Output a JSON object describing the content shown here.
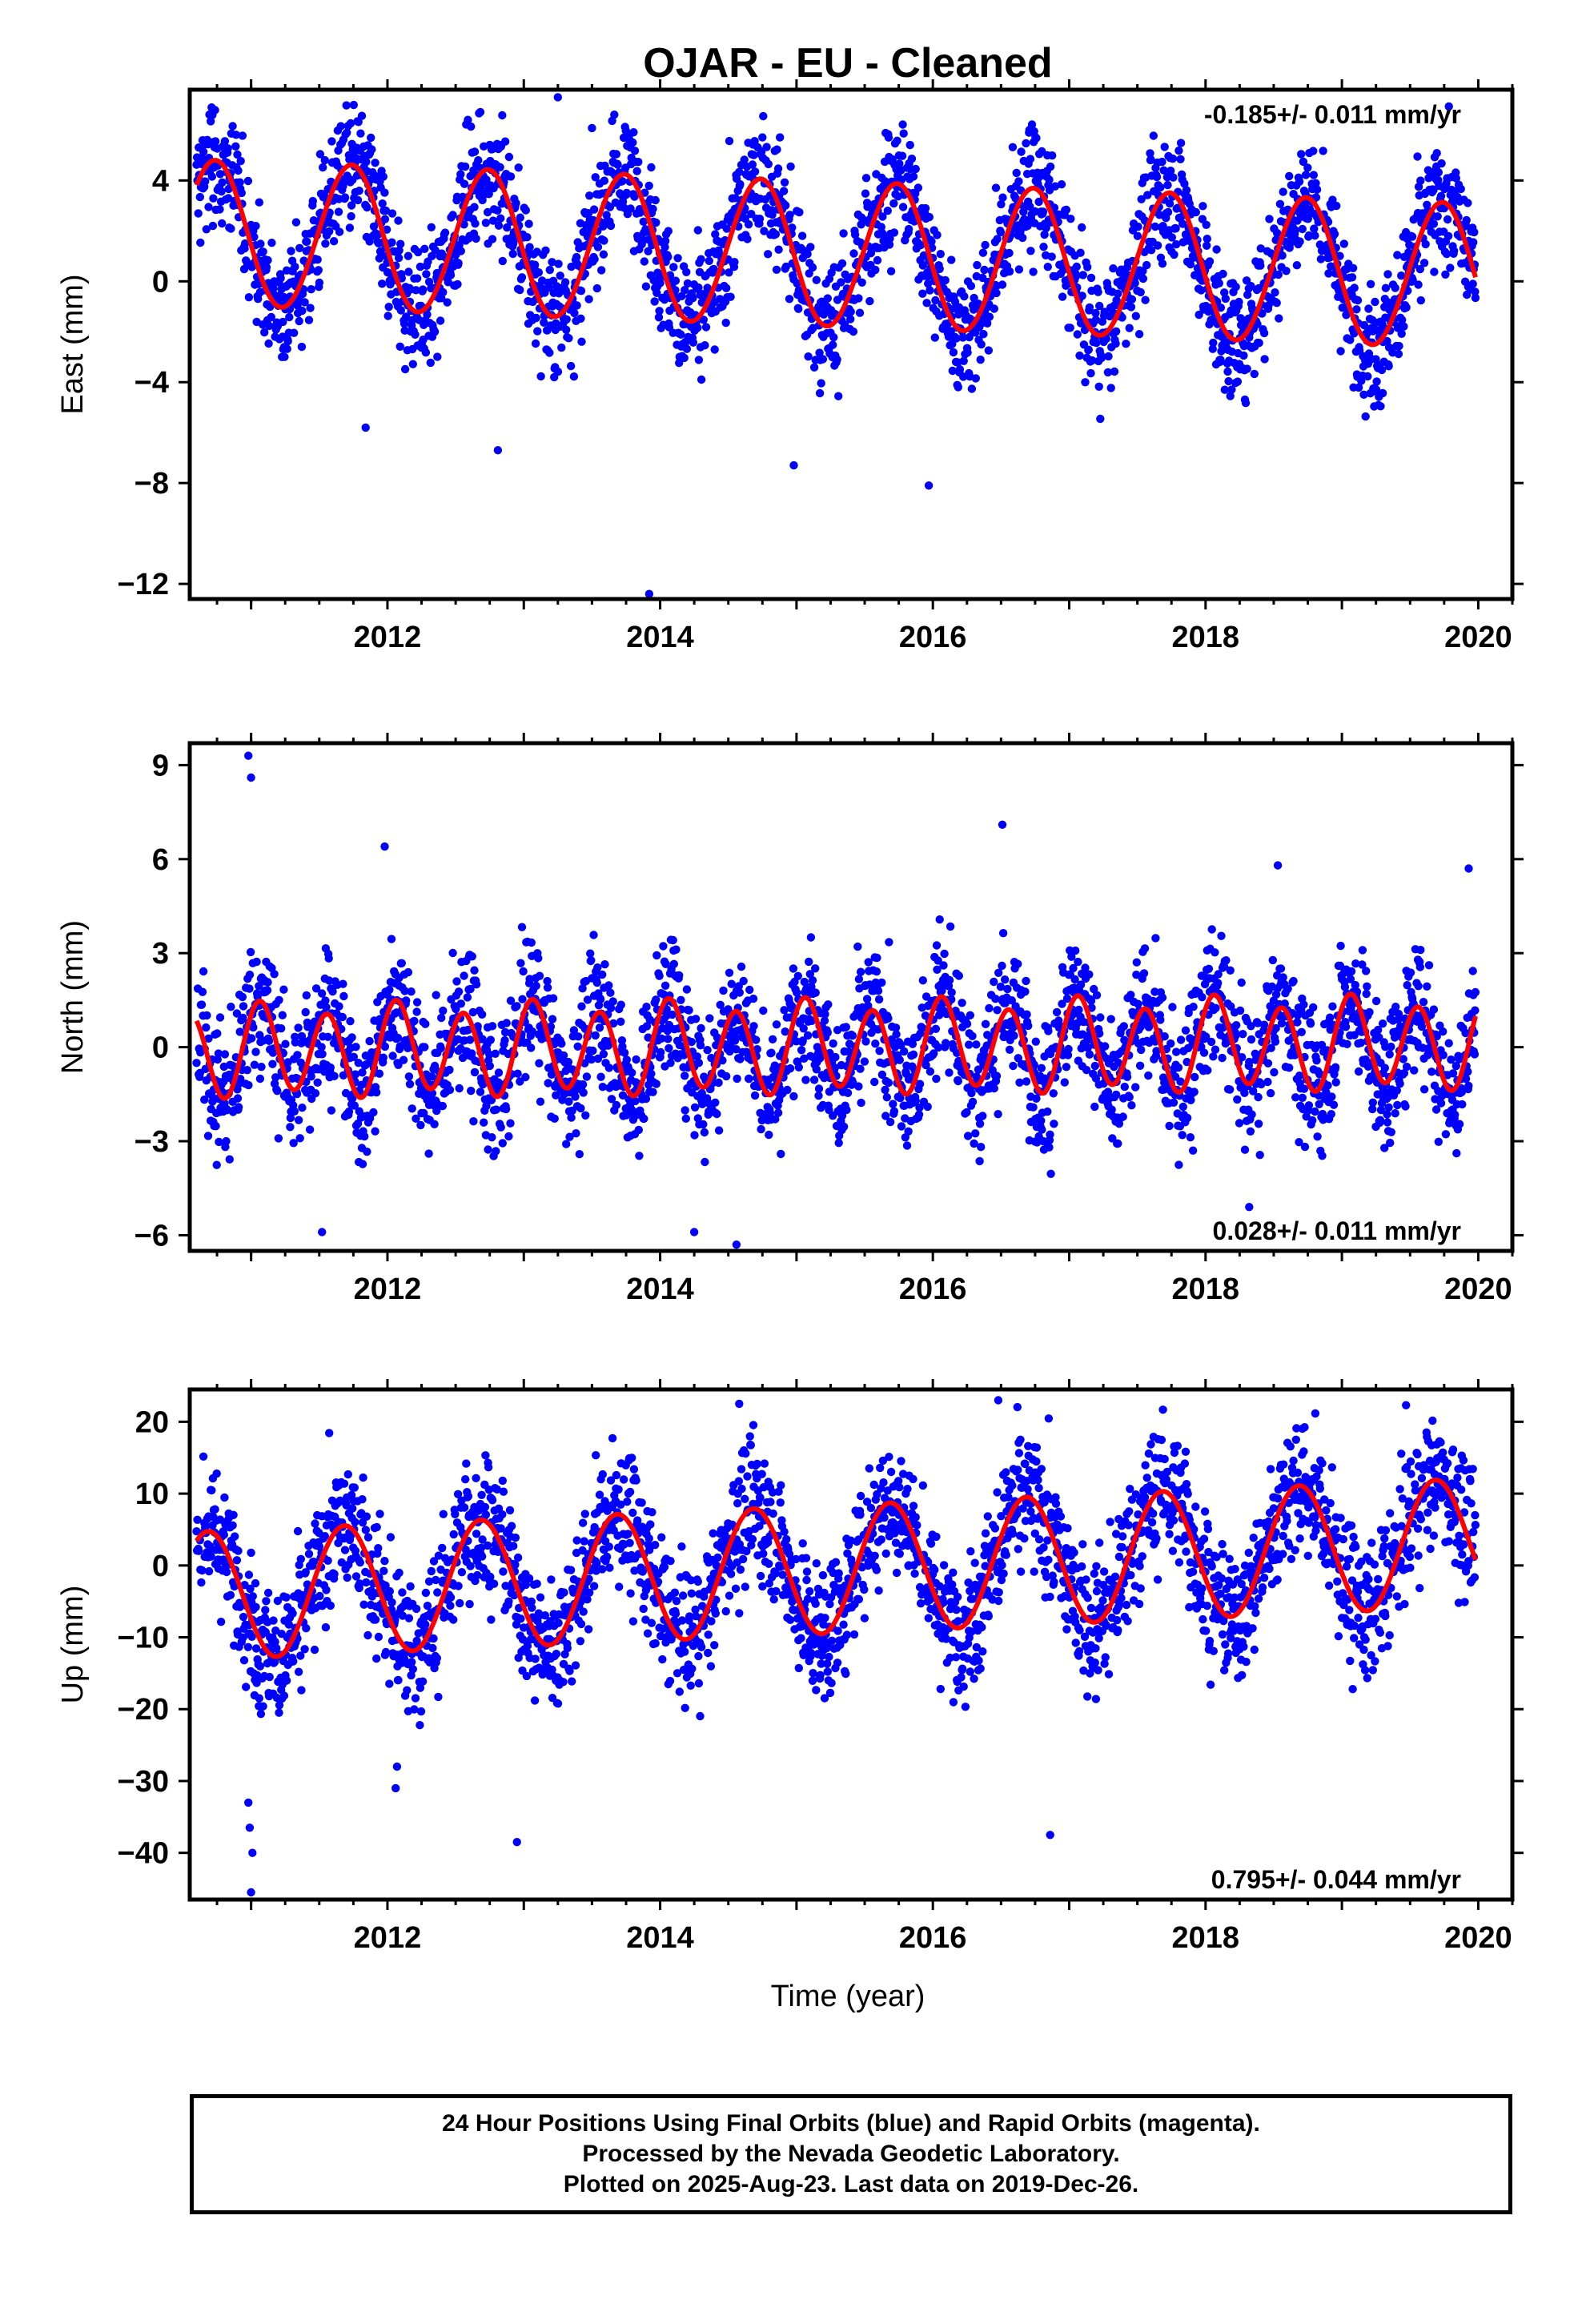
{
  "title": "OJAR  - EU - Cleaned",
  "xlabel": "Time (year)",
  "caption": [
    "24 Hour Positions Using Final Orbits (blue) and Rapid Orbits (magenta).",
    "Processed by the Nevada Geodetic Laboratory.",
    "Plotted on 2025-Aug-23. Last data on 2019-Dec-26."
  ],
  "colors": {
    "points": "#0000ff",
    "fit": "#ff0000",
    "frame": "#000000"
  },
  "chart_data": [
    {
      "type": "scatter",
      "component": "east",
      "ylabel": "East (mm)",
      "rate_label": "-0.185+/- 0.011 mm/yr",
      "xlim": [
        2010.55,
        2020.25
      ],
      "ylim": [
        -12.6,
        7.6
      ],
      "xticks": [
        2012,
        2014,
        2016,
        2018,
        2020
      ],
      "yticks": [
        4,
        0,
        -4,
        -8,
        -12
      ],
      "data_range": [
        2010.6,
        2019.98
      ],
      "model": {
        "offset": 1.05,
        "trend": -0.185,
        "annual_cos": -0.35,
        "annual_sin": -2.85,
        "semiannual_cos": -0.05,
        "semiannual_sin": -0.05
      },
      "scatter_sigma": 1.25,
      "outliers": [
        [
          2013.92,
          -12.4
        ],
        [
          2014.98,
          -7.3
        ],
        [
          2015.97,
          -8.1
        ],
        [
          2012.81,
          -6.7
        ],
        [
          2011.84,
          -5.8
        ],
        [
          2013.25,
          7.3
        ]
      ]
    },
    {
      "type": "scatter",
      "component": "north",
      "ylabel": "North (mm)",
      "rate_label": "0.028+/- 0.011 mm/yr",
      "xlim": [
        2010.55,
        2020.25
      ],
      "ylim": [
        -6.5,
        9.7
      ],
      "xticks": [
        2012,
        2014,
        2016,
        2018,
        2020
      ],
      "yticks": [
        9,
        6,
        3,
        0,
        -3,
        -6
      ],
      "data_range": [
        2010.6,
        2019.98
      ],
      "model": {
        "offset": 0.0,
        "trend": 0.028,
        "annual_cos": 0.15,
        "annual_sin": 0.2,
        "semiannual_cos": 1.0,
        "semiannual_sin": 0.95
      },
      "scatter_sigma": 1.1,
      "outliers": [
        [
          2010.98,
          9.3
        ],
        [
          2011.0,
          8.6
        ],
        [
          2016.51,
          7.1
        ],
        [
          2011.98,
          6.4
        ],
        [
          2018.53,
          5.8
        ],
        [
          2019.93,
          5.7
        ],
        [
          2014.56,
          -6.3
        ],
        [
          2011.52,
          -5.9
        ],
        [
          2014.25,
          -5.9
        ],
        [
          2018.32,
          -5.1
        ]
      ]
    },
    {
      "type": "scatter",
      "component": "up",
      "ylabel": "Up (mm)",
      "rate_label": "0.795+/- 0.044 mm/yr",
      "xlim": [
        2010.55,
        2020.25
      ],
      "ylim": [
        -46.5,
        24.5
      ],
      "xticks": [
        2012,
        2014,
        2016,
        2018,
        2020
      ],
      "yticks": [
        20,
        10,
        0,
        -10,
        -20,
        -30,
        -40
      ],
      "data_range": [
        2010.6,
        2019.98
      ],
      "model": {
        "offset": -0.5,
        "trend": 0.795,
        "annual_cos": -3.5,
        "annual_sin": -8.2,
        "semiannual_cos": 0.0,
        "semiannual_sin": 0.0
      },
      "scatter_sigma": 4.8,
      "outliers": [
        [
          2011.0,
          -45.5
        ],
        [
          2011.01,
          -40.0
        ],
        [
          2010.99,
          -36.5
        ],
        [
          2010.98,
          -33.0
        ],
        [
          2016.86,
          -37.5
        ],
        [
          2012.95,
          -38.5
        ],
        [
          2014.58,
          22.5
        ],
        [
          2016.48,
          23.0
        ],
        [
          2019.47,
          22.3
        ],
        [
          2012.06,
          -31.0
        ],
        [
          2012.07,
          -28.0
        ]
      ]
    }
  ]
}
